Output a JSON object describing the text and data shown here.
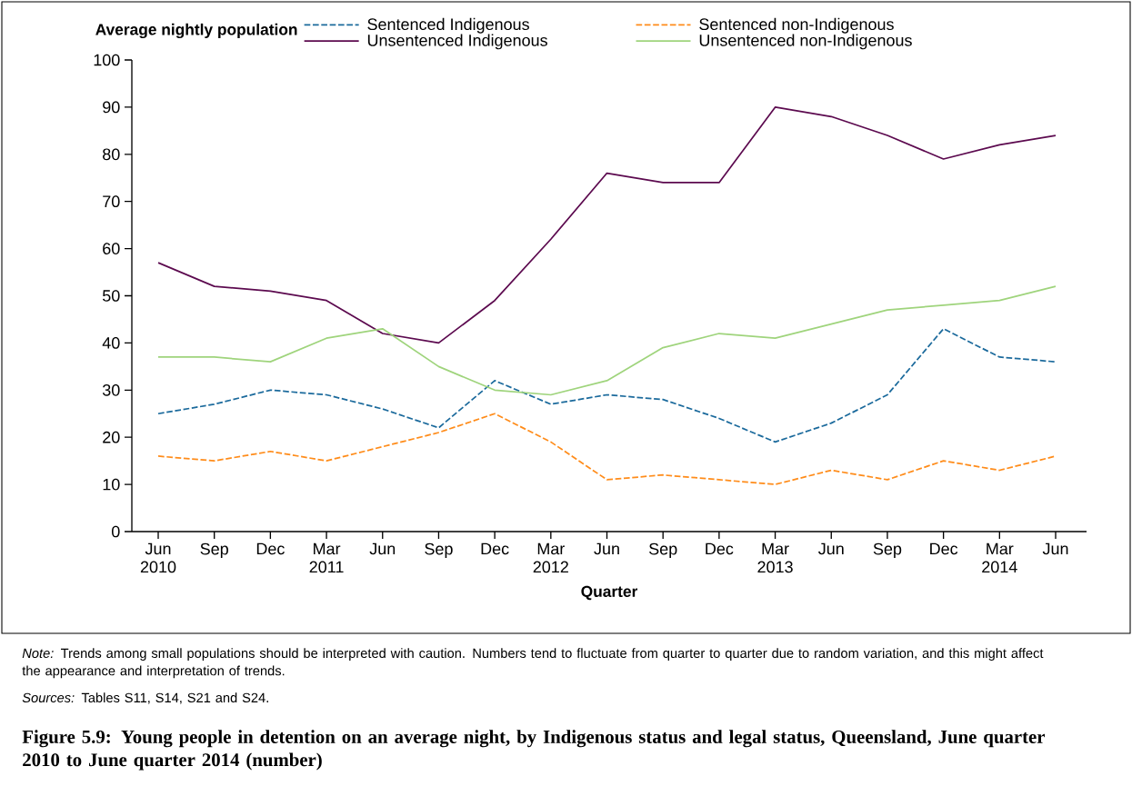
{
  "chart_data": {
    "type": "line",
    "title": "**Figure 5.9: Young people in detention on an average night, by Indigenous status and legal status, Queensland, June quarter 2010 to June quarter 2014 (number)**",
    "xlabel": "Quarter",
    "ylabel": "Average nightly population",
    "categories": [
      "Jun 2010",
      "Sep",
      "Dec",
      "Mar 2011",
      "Jun",
      "Sep",
      "Dec",
      "Mar 2012",
      "Jun",
      "Sep",
      "Dec",
      "Mar 2013",
      "Jun",
      "Sep",
      "Dec",
      "Mar 2014",
      "Jun"
    ],
    "series": [
      {
        "name": "Sentenced Indigenous",
        "color": "#1b6a9c",
        "line_style": "dashed",
        "values": [
          25,
          27,
          30,
          29,
          26,
          22,
          32,
          27,
          29,
          28,
          24,
          19,
          23,
          29,
          43,
          37,
          36
        ]
      },
      {
        "name": "Sentenced non-Indigenous",
        "color": "#ff8c1a",
        "line_style": "dashed",
        "values": [
          16,
          15,
          17,
          15,
          18,
          21,
          25,
          19,
          11,
          12,
          11,
          10,
          13,
          11,
          15,
          13,
          16
        ]
      },
      {
        "name": "Unsentenced Indigenous",
        "color": "#5c0a4f",
        "line_style": "solid",
        "values": [
          57,
          52,
          51,
          49,
          42,
          40,
          49,
          62,
          76,
          74,
          74,
          90,
          88,
          84,
          79,
          82,
          84
        ]
      },
      {
        "name": "Unsentenced non-Indigenous",
        "color": "#9fd47c",
        "line_style": "solid",
        "values": [
          37,
          37,
          36,
          41,
          43,
          35,
          30,
          29,
          32,
          39,
          42,
          41,
          44,
          47,
          48,
          49,
          52
        ]
      }
    ],
    "ylim": [
      0,
      100
    ],
    "yticks": [
      0,
      10,
      20,
      30,
      40,
      50,
      60,
      70,
      80,
      90,
      100
    ],
    "legend": "top",
    "grid": false,
    "annotations": [
      "*Note:* Trends among small populations should be interpreted with caution. Numbers tend to fluctuate from quarter to quarter due to random variation, and this might affect the appearance and interpretation of trends.",
      "*Sources:* Tables S11, S14, S21 and S24."
    ]
  }
}
